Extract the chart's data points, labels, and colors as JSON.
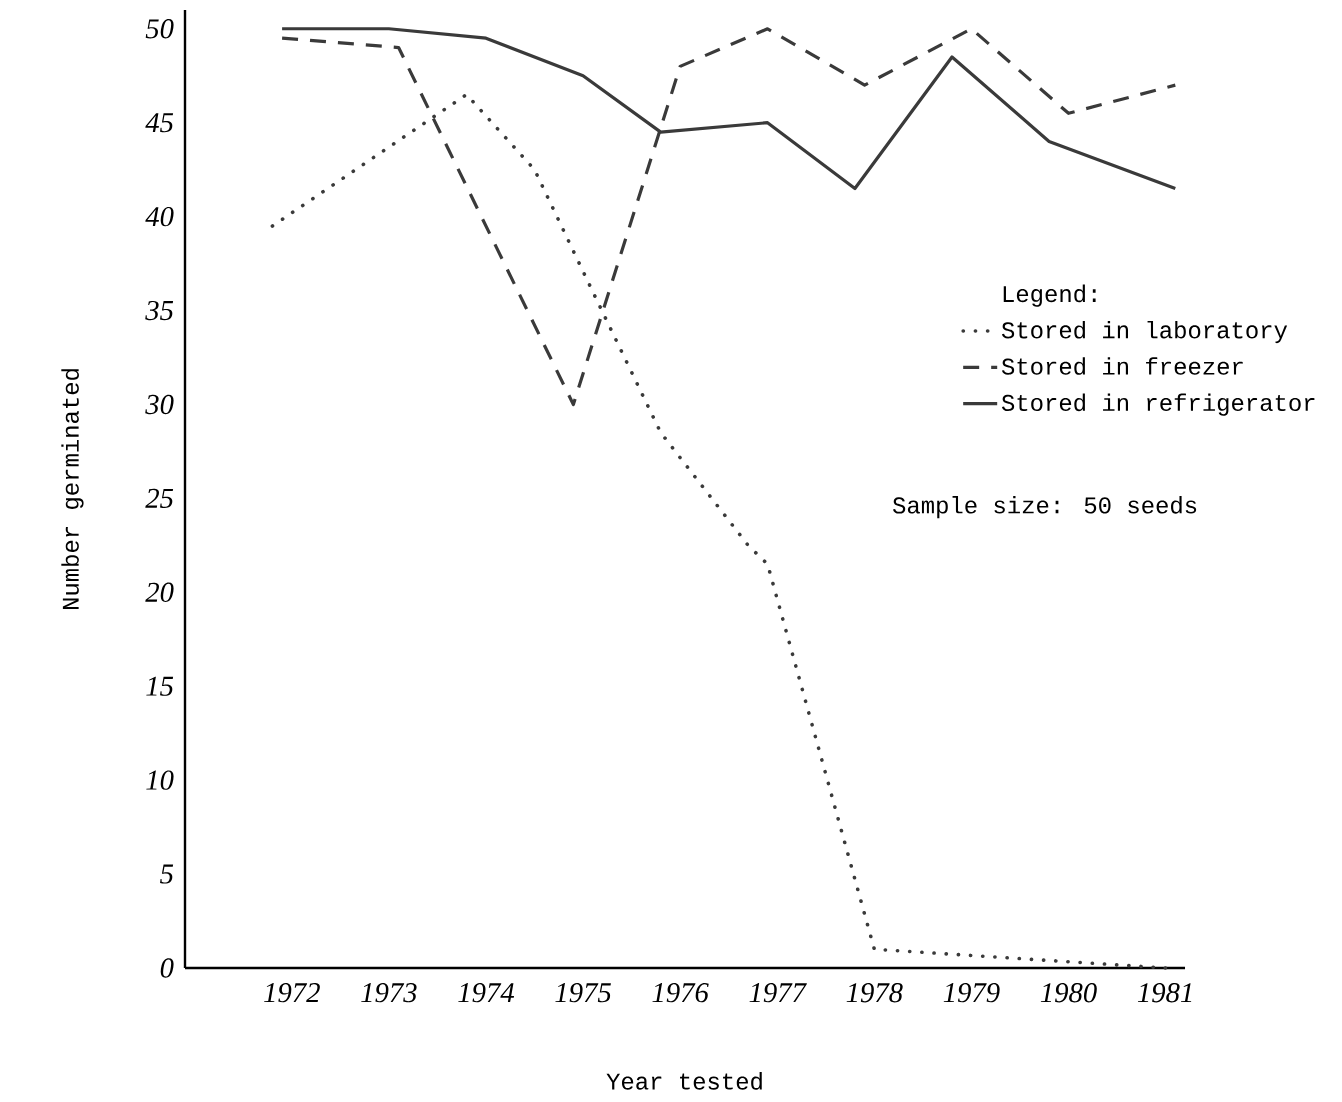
{
  "chart_data": {
    "type": "line",
    "xlabel": "Year tested",
    "ylabel": "Number germinated",
    "legend_title": "Legend:",
    "annotations": [
      "Sample size:  50 seeds"
    ],
    "xlim": [
      1970.9,
      1981.2
    ],
    "xticks": [
      1972,
      1973,
      1974,
      1975,
      1976,
      1977,
      1978,
      1979,
      1980,
      1981
    ],
    "ylim": [
      0,
      51
    ],
    "yticks": [
      0,
      5,
      10,
      15,
      20,
      25,
      30,
      35,
      40,
      45,
      50
    ],
    "legend": "right",
    "grid": false,
    "marker": "none",
    "series": [
      {
        "name": "Stored in laboratory",
        "color": "#3a3a3a",
        "line_style": "dotted",
        "x": [
          1971.8,
          1973.8,
          1974.5,
          1975.1,
          1975.8,
          1976.7,
          1976.9,
          1978.0,
          1981.0
        ],
        "values": [
          39.5,
          46.5,
          42.5,
          36,
          28.5,
          22.5,
          21.5,
          1,
          0
        ]
      },
      {
        "name": "Stored in freezer",
        "color": "#3a3a3a",
        "line_style": "dashed",
        "x": [
          1971.9,
          1973.1,
          1974.9,
          1976.0,
          1976.9,
          1977.9,
          1979.0,
          1980.0,
          1981.1
        ],
        "values": [
          49.5,
          49,
          30,
          48,
          50,
          47,
          50,
          45.5,
          47
        ]
      },
      {
        "name": "Stored in refrigerator",
        "color": "#3a3a3a",
        "line_style": "solid",
        "x": [
          1971.9,
          1973.0,
          1974.0,
          1975.0,
          1975.8,
          1976.9,
          1977.8,
          1978.8,
          1979.8,
          1981.1
        ],
        "values": [
          50,
          50,
          49.5,
          47.5,
          44.5,
          45,
          41.5,
          48.5,
          44,
          41.5
        ]
      }
    ]
  }
}
